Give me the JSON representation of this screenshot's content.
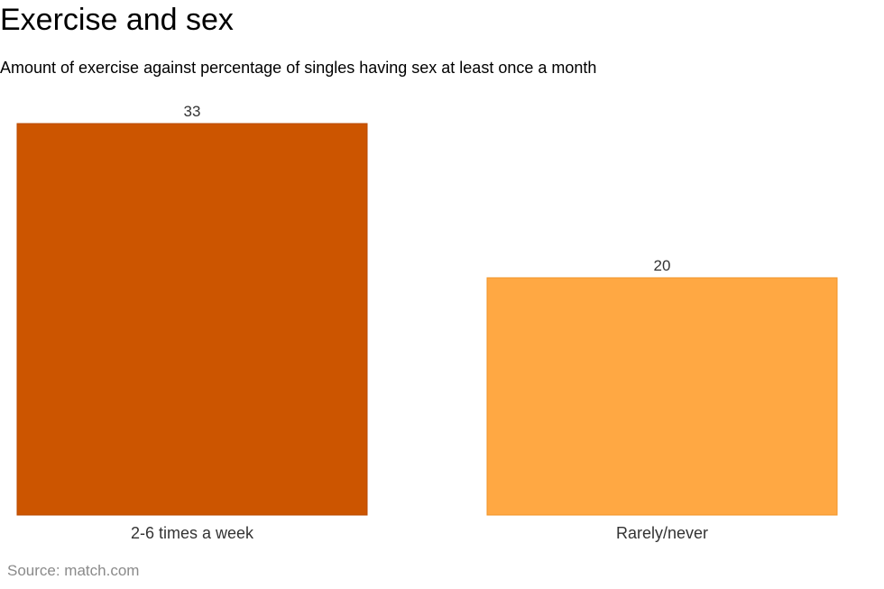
{
  "chart_data": {
    "type": "bar",
    "title": "Exercise and sex",
    "subtitle": "Amount of exercise against percentage of singles having sex at least once a month",
    "categories": [
      "2-6 times a week",
      "Rarely/never"
    ],
    "values": [
      33,
      20
    ],
    "colors": [
      "#cc5500",
      "#ffa843"
    ],
    "edge_colors": [
      "#b84a00",
      "#f0952a"
    ],
    "ylim": [
      0,
      33
    ],
    "grid": false,
    "legend": "none",
    "source": "Source: match.com"
  }
}
